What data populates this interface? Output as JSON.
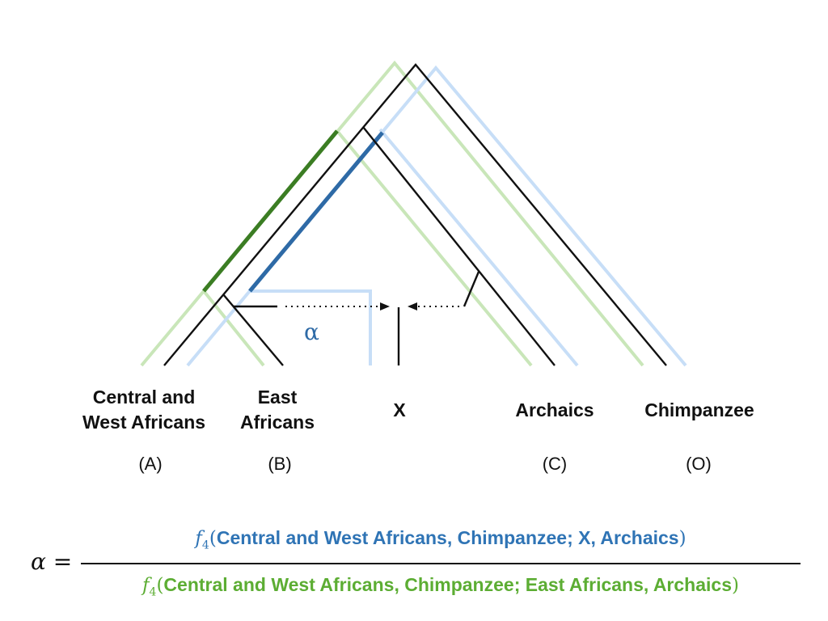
{
  "colors": {
    "light_green": "#c9e6b9",
    "dark_green": "#3b7d23",
    "light_blue": "#c7def7",
    "dark_blue": "#2e6aa6",
    "formula_blue": "#2f74b5",
    "formula_green": "#5cad33",
    "black": "#111111"
  },
  "tree": {
    "taxa": [
      {
        "name": "Central and\nWest Africans",
        "code": "(A)"
      },
      {
        "name": "East\nAfricans",
        "code": "(B)"
      },
      {
        "name": "X",
        "code": ""
      },
      {
        "name": "Archaics",
        "code": "(C)"
      },
      {
        "name": "Chimpanzee",
        "code": "(O)"
      }
    ],
    "admixture_label": "α"
  },
  "formula": {
    "lhs": "α =",
    "function": "f",
    "subscript": "4",
    "numerator_args": "Central and West Africans, Chimpanzee; X, Archaics",
    "denominator_args": "Central and West Africans, Chimpanzee; East Africans, Archaics"
  }
}
